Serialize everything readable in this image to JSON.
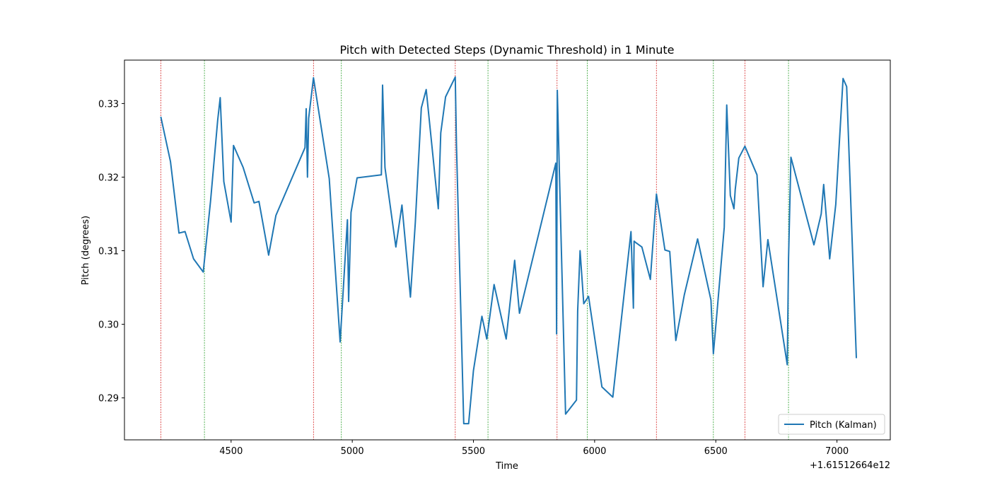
{
  "chart_data": {
    "type": "line",
    "title": "Pitch with Detected Steps (Dynamic Threshold) in 1 Minute",
    "xlabel": "Time",
    "ylabel": "Pitch (degrees)",
    "x_offset_text": "+1.61512664e12",
    "xlim": [
      4060,
      7220
    ],
    "ylim": [
      0.2843,
      0.3359
    ],
    "x_ticks": [
      4500,
      5000,
      5500,
      6000,
      6500,
      7000
    ],
    "x_tick_labels": [
      "4500",
      "5000",
      "5500",
      "6000",
      "6500",
      "7000"
    ],
    "y_ticks": [
      0.29,
      0.3,
      0.31,
      0.32,
      0.33
    ],
    "y_tick_labels": [
      "0.29",
      "0.30",
      "0.31",
      "0.32",
      "0.33"
    ],
    "grid": false,
    "legend": {
      "position": "lower-right",
      "entries": [
        "Pitch (Kalman)"
      ]
    },
    "series": [
      {
        "name": "Pitch (Kalman)",
        "color": "#1f77b4",
        "x": [
          4210,
          4250,
          4285,
          4310,
          4345,
          4385,
          4415,
          4445,
          4455,
          4470,
          4500,
          4510,
          4550,
          4595,
          4615,
          4655,
          4685,
          4805,
          4810,
          4815,
          4820,
          4840,
          4905,
          4950,
          4980,
          4985,
          4995,
          5020,
          5120,
          5125,
          5135,
          5180,
          5205,
          5240,
          5260,
          5285,
          5305,
          5355,
          5365,
          5385,
          5425,
          5430,
          5460,
          5480,
          5500,
          5535,
          5555,
          5585,
          5635,
          5670,
          5690,
          5840,
          5843,
          5846,
          5880,
          5925,
          5930,
          5940,
          5955,
          5975,
          6030,
          6075,
          6150,
          6160,
          6163,
          6170,
          6195,
          6230,
          6255,
          6290,
          6310,
          6335,
          6370,
          6425,
          6480,
          6490,
          6505,
          6535,
          6545,
          6560,
          6575,
          6580,
          6595,
          6620,
          6670,
          6695,
          6715,
          6795,
          6800,
          6810,
          6905,
          6935,
          6945,
          6970,
          6995,
          7025,
          7040,
          7080
        ],
        "values": [
          0.3282,
          0.3221,
          0.3124,
          0.3126,
          0.3089,
          0.3071,
          0.3167,
          0.3278,
          0.3308,
          0.3194,
          0.3139,
          0.3243,
          0.3213,
          0.3165,
          0.3167,
          0.3094,
          0.3148,
          0.324,
          0.3293,
          0.32,
          0.328,
          0.3335,
          0.3198,
          0.2976,
          0.3142,
          0.3031,
          0.3152,
          0.3199,
          0.3203,
          0.3325,
          0.3213,
          0.3105,
          0.3162,
          0.3037,
          0.3138,
          0.3294,
          0.3319,
          0.3157,
          0.326,
          0.3309,
          0.3336,
          0.3244,
          0.2865,
          0.2865,
          0.2937,
          0.3011,
          0.298,
          0.3054,
          0.298,
          0.3087,
          0.3015,
          0.3219,
          0.2987,
          0.3318,
          0.2878,
          0.2897,
          0.3018,
          0.31,
          0.3028,
          0.3038,
          0.2915,
          0.2901,
          0.3126,
          0.3022,
          0.3113,
          0.3111,
          0.3105,
          0.3061,
          0.3177,
          0.3101,
          0.3099,
          0.2978,
          0.304,
          0.3116,
          0.3033,
          0.296,
          0.3017,
          0.3132,
          0.3298,
          0.3175,
          0.3157,
          0.3183,
          0.3226,
          0.3242,
          0.3203,
          0.3051,
          0.3115,
          0.2945,
          0.3089,
          0.3227,
          0.3108,
          0.315,
          0.319,
          0.3089,
          0.3163,
          0.3334,
          0.3323,
          0.2954
        ]
      }
    ],
    "vertical_lines": {
      "red": {
        "color": "#d62728",
        "x": [
          4210,
          4840,
          5425,
          5845,
          6255,
          6620
        ]
      },
      "green": {
        "color": "#2ca02c",
        "x": [
          4390,
          4955,
          5560,
          5970,
          6490,
          6800
        ]
      }
    }
  }
}
